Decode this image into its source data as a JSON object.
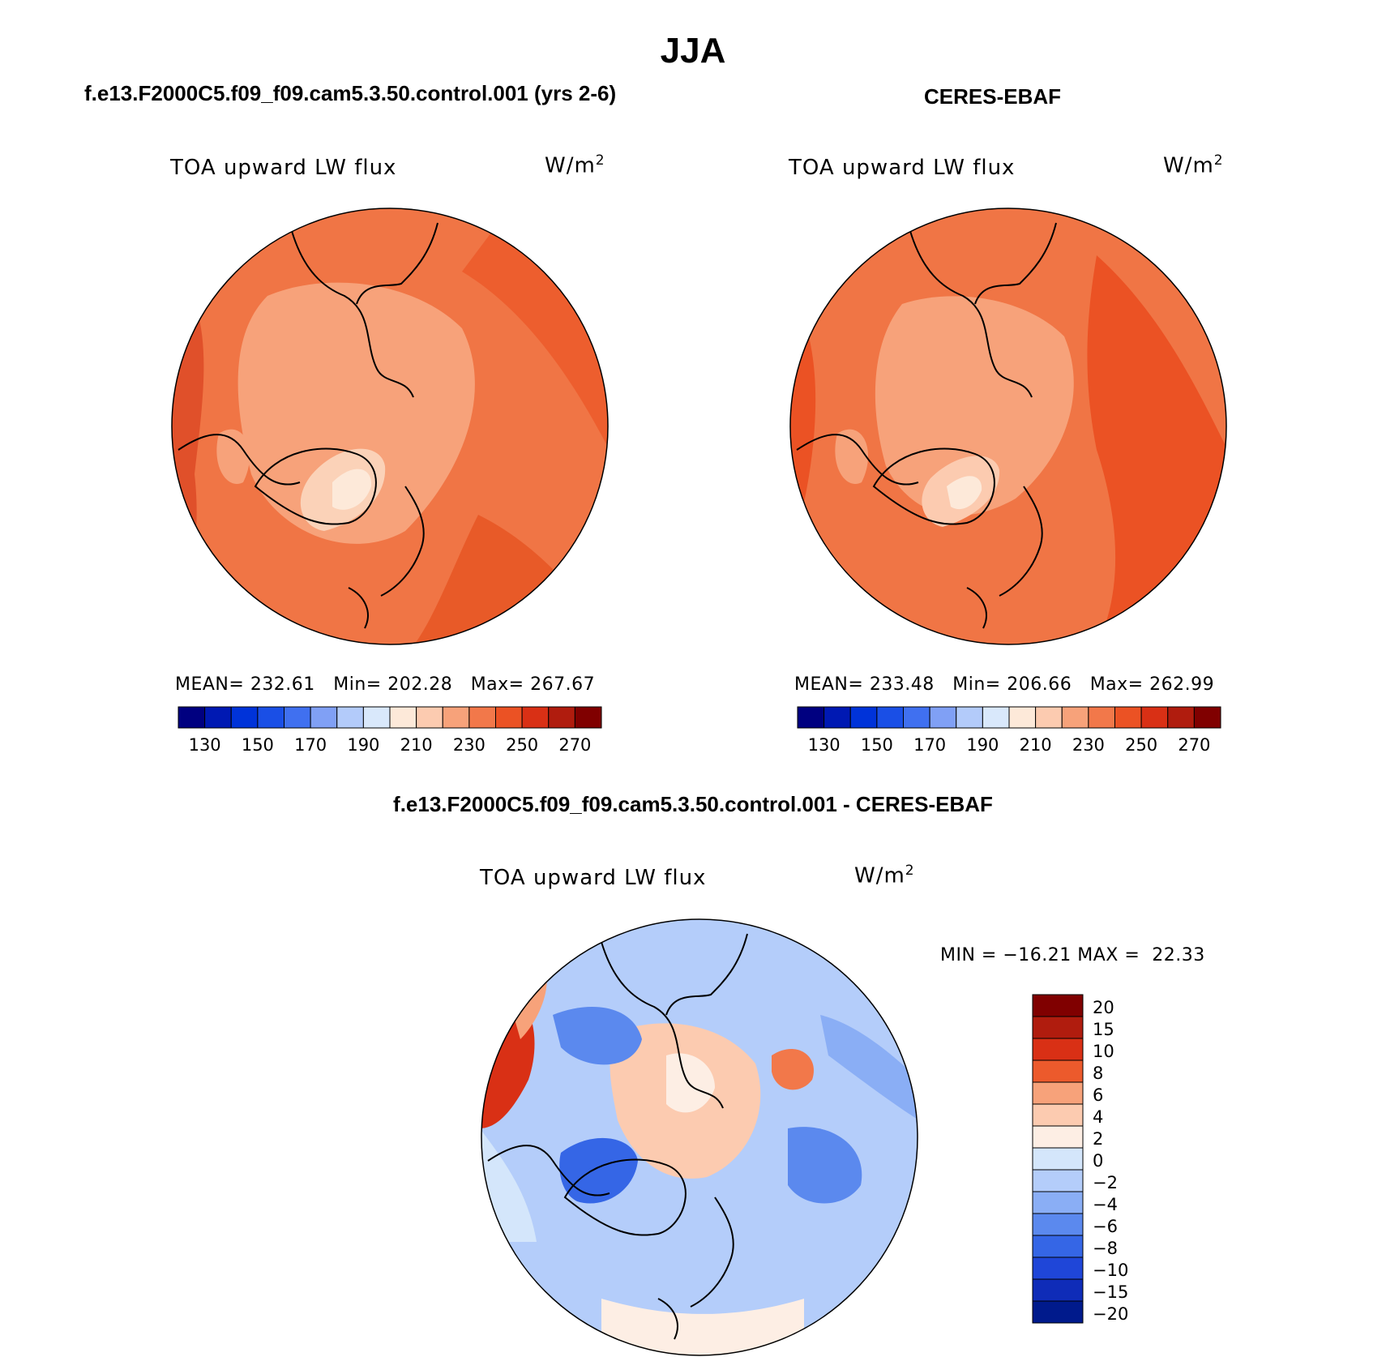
{
  "title": "JJA",
  "panels": {
    "case": {
      "title": "f.e13.F2000C5.f09_f09.cam5.3.50.control.001 (yrs 2-6)",
      "variable": "TOA upward LW flux",
      "units": "W/m",
      "units_sup": "2",
      "stats": "MEAN= 232.61   Min= 202.28   Max= 267.67"
    },
    "obs": {
      "title": "CERES-EBAF",
      "variable": "TOA upward LW flux",
      "units": "W/m",
      "units_sup": "2",
      "stats": "MEAN= 233.48   Min= 206.66   Max= 262.99"
    },
    "diff": {
      "title": "f.e13.F2000C5.f09_f09.cam5.3.50.control.001 - CERES-EBAF",
      "variable": "TOA upward LW flux",
      "units": "W/m",
      "units_sup": "2",
      "stats": "MIN = −16.21 MAX =  22.33"
    }
  },
  "abs_colorbar": {
    "colors": [
      "#000080",
      "#0019b3",
      "#0033d9",
      "#1a4fe6",
      "#4070f0",
      "#80a0f5",
      "#b3cbfa",
      "#d9e8fb",
      "#fde9d9",
      "#fccbb0",
      "#f7a27a",
      "#f2784a",
      "#eb5224",
      "#d93015",
      "#b01c0e",
      "#800000"
    ],
    "labels": [
      "130",
      "150",
      "170",
      "190",
      "210",
      "230",
      "250",
      "270"
    ]
  },
  "diff_colorbar": {
    "colors": [
      "#800000",
      "#b01c0e",
      "#d93015",
      "#ec5a2c",
      "#f7a27a",
      "#fccbb0",
      "#fdeee4",
      "#d4e6fb",
      "#b4cdfa",
      "#8aaef5",
      "#5b89ee",
      "#3566e6",
      "#1f46d8",
      "#0f2cb8",
      "#001a8c"
    ],
    "labels": [
      "20",
      "15",
      "10",
      "8",
      "6",
      "4",
      "2",
      "0",
      "−2",
      "−4",
      "−6",
      "−8",
      "−10",
      "−15",
      "−20"
    ]
  }
}
